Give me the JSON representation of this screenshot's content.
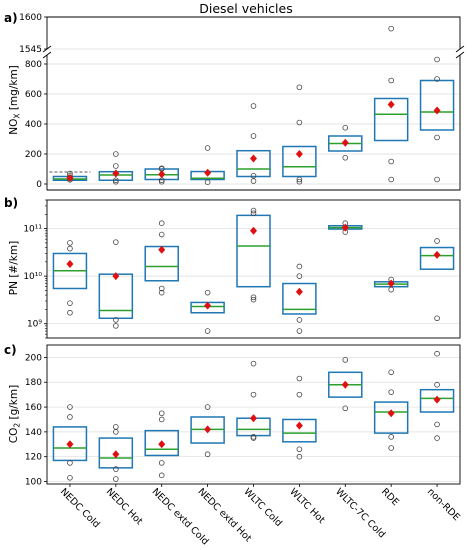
{
  "figure": {
    "title": "Diesel vehicles",
    "colors": {
      "box": "#1f77b4",
      "median": "#2ca02c",
      "mean": "#e01010",
      "outlier": "#444444"
    }
  },
  "chart_data": [
    {
      "panel": "a)",
      "type": "box",
      "ylabel": "NOx [mg/km]",
      "upper_axis": {
        "ylim": [
          1545,
          1600
        ],
        "ticks": [
          "1545",
          "1600"
        ]
      },
      "lower_axis": {
        "ylim": [
          -40,
          860
        ],
        "ticks": [
          "0",
          "200",
          "400",
          "600",
          "800"
        ]
      },
      "broken_axis": true,
      "limit_line": 80,
      "categories": [
        "NEDC Cold",
        "NEDC Hot",
        "NEDC extd Cold",
        "NEDC extd Hot",
        "WLTC Cold",
        "WLTC Hot",
        "WLTC-7C Cold",
        "RDE",
        "non-RDE"
      ],
      "boxes": [
        {
          "q1": 25,
          "median": 33,
          "q3": 50,
          "mean": 40,
          "outliers": [
            28,
            40,
            55,
            70
          ]
        },
        {
          "q1": 25,
          "median": 60,
          "q3": 82,
          "mean": 70,
          "outliers": [
            15,
            25,
            120,
            200
          ]
        },
        {
          "q1": 30,
          "median": 62,
          "q3": 100,
          "mean": 65,
          "outliers": [
            15,
            25,
            100,
            105
          ]
        },
        {
          "q1": 30,
          "median": 38,
          "q3": 83,
          "mean": 75,
          "outliers": [
            12,
            240
          ]
        },
        {
          "q1": 50,
          "median": 100,
          "q3": 222,
          "mean": 170,
          "outliers": [
            20,
            55,
            320,
            520
          ]
        },
        {
          "q1": 50,
          "median": 115,
          "q3": 250,
          "mean": 200,
          "outliers": [
            15,
            30,
            410,
            645
          ]
        },
        {
          "q1": 220,
          "median": 270,
          "q3": 320,
          "mean": 275,
          "outliers": [
            175,
            375
          ]
        },
        {
          "q1": 290,
          "median": 465,
          "q3": 570,
          "mean": 530,
          "outliers": [
            30,
            150,
            690,
            1580
          ]
        },
        {
          "q1": 360,
          "median": 480,
          "q3": 690,
          "mean": 490,
          "outliers": [
            30,
            310,
            700,
            830
          ]
        }
      ]
    },
    {
      "panel": "b)",
      "type": "box",
      "ylabel": "PN [#/km]",
      "yscale": "log",
      "ylim": [
        500000000.0,
        400000000000.0
      ],
      "ticks": [
        "10⁹",
        "10¹⁰",
        "10¹¹"
      ],
      "categories": [
        "NEDC Cold",
        "NEDC Hot",
        "NEDC extd Cold",
        "NEDC extd Hot",
        "WLTC Cold",
        "WLTC Hot",
        "WLTC-7C Cold",
        "RDE",
        "non-RDE"
      ],
      "boxes": [
        {
          "q1": 5500000000.0,
          "median": 13000000000.0,
          "q3": 30000000000.0,
          "mean": 18000000000.0,
          "outliers": [
            1700000000.0,
            2700000000.0,
            38000000000.0,
            50000000000.0
          ]
        },
        {
          "q1": 1300000000.0,
          "median": 1900000000.0,
          "q3": 11000000000.0,
          "mean": 10000000000.0,
          "outliers": [
            900000000.0,
            1200000000.0,
            52000000000.0
          ]
        },
        {
          "q1": 8000000000.0,
          "median": 16000000000.0,
          "q3": 42000000000.0,
          "mean": 36000000000.0,
          "outliers": [
            4500000000.0,
            5500000000.0,
            75000000000.0,
            130000000000.0
          ]
        },
        {
          "q1": 1700000000.0,
          "median": 2300000000.0,
          "q3": 2800000000.0,
          "mean": 2400000000.0,
          "outliers": [
            700000000.0,
            4500000000.0
          ]
        },
        {
          "q1": 6000000000.0,
          "median": 43000000000.0,
          "q3": 190000000000.0,
          "mean": 90000000000.0,
          "outliers": [
            3200000000.0,
            3600000000.0,
            210000000000.0,
            240000000000.0
          ]
        },
        {
          "q1": 1600000000.0,
          "median": 2000000000.0,
          "q3": 7000000000.0,
          "mean": 4700000000.0,
          "outliers": [
            700000000.0,
            1200000000.0,
            10000000000.0,
            16000000000.0
          ]
        },
        {
          "q1": 98000000000.0,
          "median": 105000000000.0,
          "q3": 115000000000.0,
          "mean": 105000000000.0,
          "outliers": [
            85000000000.0,
            130000000000.0
          ]
        },
        {
          "q1": 6000000000.0,
          "median": 6800000000.0,
          "q3": 7600000000.0,
          "mean": 7000000000.0,
          "outliers": [
            5200000000.0,
            8500000000.0
          ]
        },
        {
          "q1": 14000000000.0,
          "median": 27000000000.0,
          "q3": 40000000000.0,
          "mean": 28000000000.0,
          "outliers": [
            1300000000.0,
            55000000000.0
          ]
        }
      ]
    },
    {
      "panel": "c)",
      "type": "box",
      "ylabel": "CO2 [g/km]",
      "ylim": [
        98,
        210
      ],
      "ticks": [
        "100",
        "120",
        "140",
        "160",
        "180",
        "200"
      ],
      "categories": [
        "NEDC Cold",
        "NEDC Hot",
        "NEDC extd Cold",
        "NEDC extd Hot",
        "WLTC Cold",
        "WLTC Hot",
        "WLTC-7C Cold",
        "RDE",
        "non-RDE"
      ],
      "boxes": [
        {
          "q1": 117,
          "median": 127,
          "q3": 144,
          "mean": 130,
          "outliers": [
            103,
            115,
            152,
            160
          ]
        },
        {
          "q1": 111,
          "median": 119,
          "q3": 135,
          "mean": 122,
          "outliers": [
            102,
            110,
            140,
            144
          ]
        },
        {
          "q1": 121,
          "median": 126,
          "q3": 141,
          "mean": 130,
          "outliers": [
            105,
            115,
            150,
            155
          ]
        },
        {
          "q1": 131,
          "median": 142,
          "q3": 152,
          "mean": 142,
          "outliers": [
            122,
            160
          ]
        },
        {
          "q1": 137,
          "median": 142,
          "q3": 151,
          "mean": 151,
          "outliers": [
            135,
            136,
            170,
            195
          ]
        },
        {
          "q1": 132,
          "median": 139,
          "q3": 150,
          "mean": 145,
          "outliers": [
            120,
            126,
            170,
            183
          ]
        },
        {
          "q1": 168,
          "median": 178,
          "q3": 188,
          "mean": 178,
          "outliers": [
            159,
            198
          ]
        },
        {
          "q1": 139,
          "median": 156,
          "q3": 164,
          "mean": 155,
          "outliers": [
            127,
            136,
            172,
            188
          ]
        },
        {
          "q1": 156,
          "median": 167,
          "q3": 174,
          "mean": 166,
          "outliers": [
            135,
            146,
            178,
            203
          ]
        }
      ]
    }
  ]
}
